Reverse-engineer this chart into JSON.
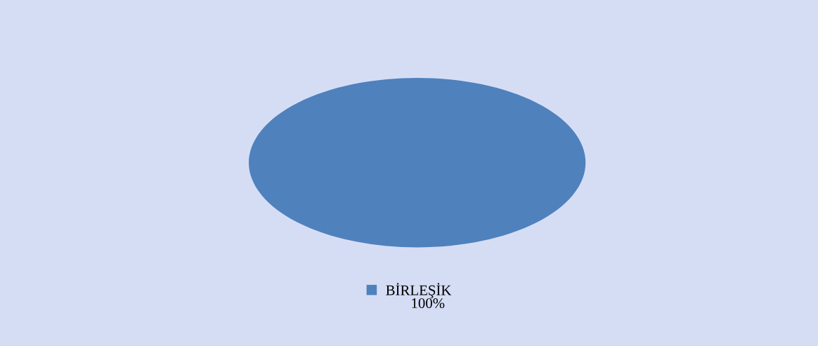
{
  "chart_data": {
    "type": "pie",
    "categories": [
      "BİRLEŞİK"
    ],
    "values": [
      100
    ],
    "colors": [
      "#4f81bd"
    ],
    "value_labels": [
      "100%"
    ],
    "legend": "bottom"
  }
}
